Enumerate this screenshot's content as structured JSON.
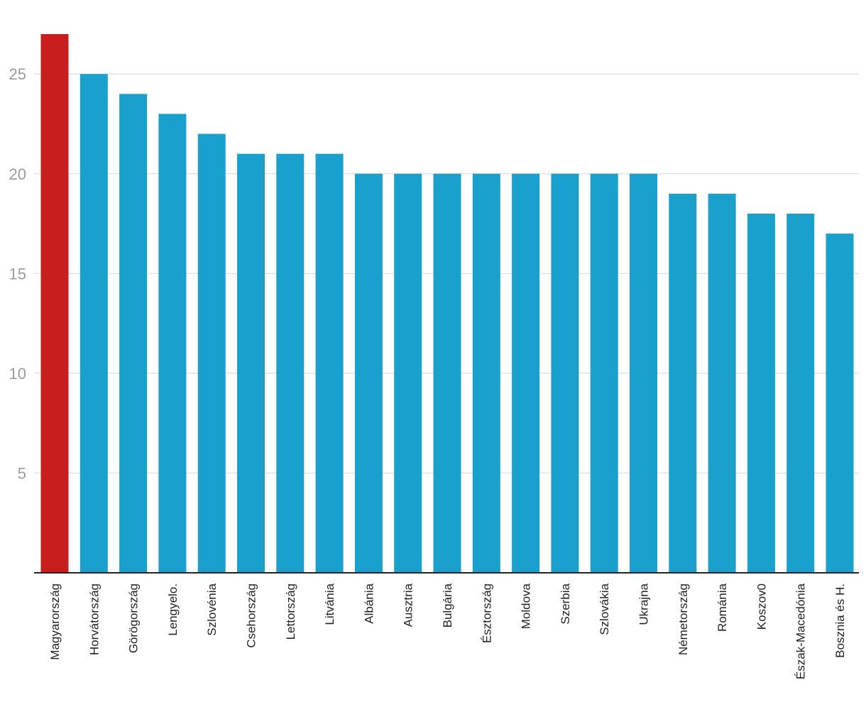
{
  "chart_data": {
    "type": "bar",
    "title": "",
    "xlabel": "",
    "ylabel": "",
    "categories": [
      "Magyarország",
      "Horvátország",
      "Görögország",
      "Lengyelo.",
      "Szlovénia",
      "Csehország",
      "Lettország",
      "Litvánia",
      "Albánia",
      "Ausztria",
      "Bulgária",
      "Észtország",
      "Moldova",
      "Szerbia",
      "Szlovákia",
      "Ukrajna",
      "Németország",
      "Románia",
      "Koszov0",
      "Észak-Macedónia",
      "Bosznia és H."
    ],
    "values": [
      27,
      25,
      24,
      23,
      22,
      21,
      21,
      21,
      20,
      20,
      20,
      20,
      20,
      20,
      20,
      20,
      19,
      19,
      18,
      18,
      17
    ],
    "highlight_index": 0,
    "ylim": [
      0,
      27
    ],
    "yticks": [
      5,
      10,
      15,
      20,
      25
    ],
    "grid": true,
    "legend": "none",
    "colors": {
      "highlight": "#c81e1e",
      "bar": "#1aa0cc",
      "grid": "#dcdcdc",
      "axis": "#222222",
      "ytick_text": "#9b9b9b",
      "xtick_text": "#222222"
    }
  }
}
